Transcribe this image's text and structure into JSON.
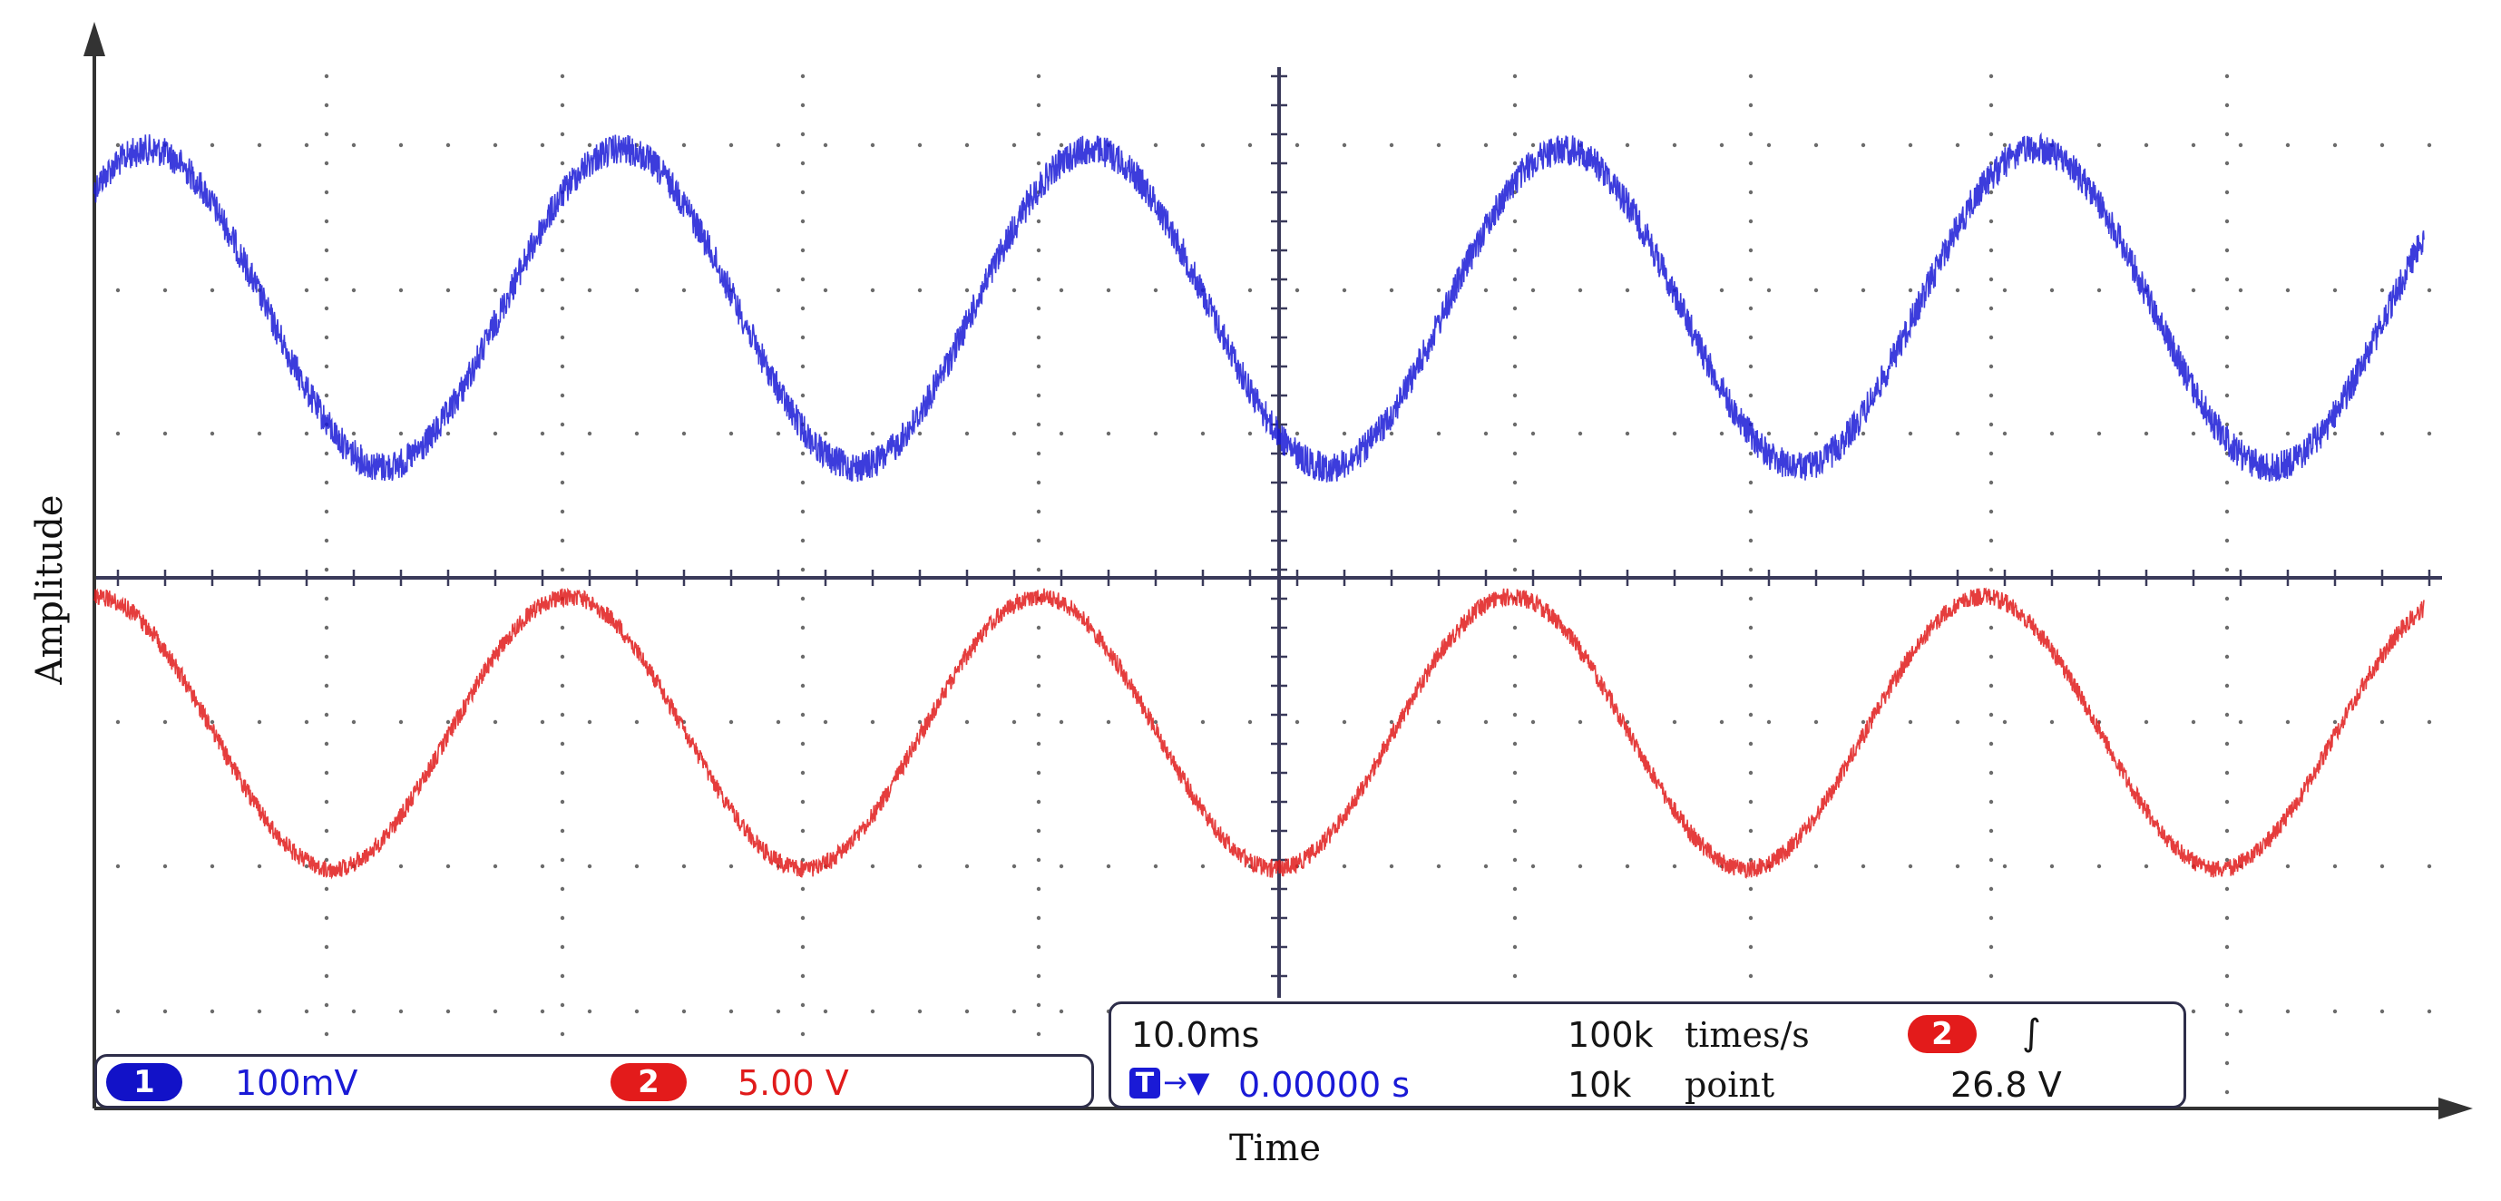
{
  "axes": {
    "x_title": "Time",
    "y_title": "Amplitude"
  },
  "channel_bar": {
    "ch1": {
      "badge": "1",
      "scale": "100mV",
      "color": "#1a1ad6"
    },
    "ch2": {
      "badge": "2",
      "scale": "5.00 V",
      "color": "#e01b1b"
    }
  },
  "timebase_panel": {
    "time_per_div": "10.0ms",
    "trigger_icon": "T",
    "trigger_arrow": "→▼",
    "trigger_offset": "0.00000 s",
    "sample_rate_value": "100k",
    "sample_rate_unit": "times/s",
    "record_length_value": "10k",
    "record_length_unit": "point",
    "trigger_source_badge": "2",
    "trigger_slope_icon": "rising-edge-icon",
    "trigger_slope_glyph": "∫",
    "trigger_level": "26.8 V"
  },
  "chart_data": {
    "type": "line",
    "grid": true,
    "series": [
      {
        "channel": "1",
        "color": "#1a1ad6",
        "cycles": 5,
        "noise": "high"
      },
      {
        "channel": "2",
        "color": "#e01b1b",
        "cycles": 5,
        "noise": "moderate"
      }
    ]
  }
}
